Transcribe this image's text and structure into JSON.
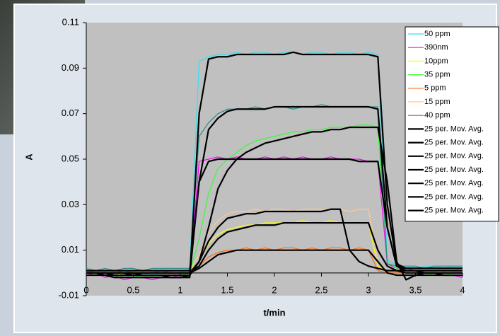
{
  "chart_data": {
    "type": "line",
    "x_label": "t/min",
    "y_label": "A",
    "xlim": [
      0,
      4
    ],
    "xticks": [
      0,
      0.5,
      1,
      1.5,
      2,
      2.5,
      3,
      3.5,
      4
    ],
    "ylim": [
      -0.01,
      0.11
    ],
    "yticks": [
      -0.01,
      0.01,
      0.03,
      0.05,
      0.07,
      0.09,
      0.11
    ],
    "grid": false,
    "legend": "upper right",
    "x": [
      0,
      0.1,
      0.2,
      0.3,
      0.4,
      0.5,
      0.6,
      0.7,
      0.8,
      0.9,
      1,
      1.1,
      1.2,
      1.3,
      1.4,
      1.5,
      1.6,
      1.7,
      1.8,
      1.9,
      2,
      2.1,
      2.2,
      2.3,
      2.4,
      2.5,
      2.6,
      2.7,
      2.8,
      2.9,
      3,
      3.1,
      3.2,
      3.3,
      3.4,
      3.5,
      3.6,
      3.7,
      3.8,
      3.9,
      4
    ],
    "series": [
      {
        "name": "50 ppm",
        "color": "#33e0f0",
        "values": [
          0.001,
          0,
          0.001,
          -0.001,
          0,
          0.001,
          0,
          -0.001,
          0,
          0.001,
          0,
          0.002,
          0.093,
          0.095,
          0.096,
          0.096,
          0.097,
          0.096,
          0.097,
          0.097,
          0.096,
          0.097,
          0.097,
          0.096,
          0.097,
          0.097,
          0.096,
          0.097,
          0.097,
          0.096,
          0.097,
          0.096,
          0.006,
          0.003,
          0.003,
          0.002,
          0.003,
          0.003,
          0.002,
          0.003,
          0.003
        ]
      },
      {
        "name": "390nm",
        "color": "#ff00ff",
        "values": [
          -0.001,
          0,
          -0.002,
          -0.001,
          -0.003,
          -0.002,
          -0.002,
          -0.003,
          -0.002,
          -0.002,
          -0.001,
          0,
          0.049,
          0.05,
          0.051,
          0.05,
          0.051,
          0.05,
          0.05,
          0.051,
          0.05,
          0.051,
          0.05,
          0.051,
          0.05,
          0.05,
          0.051,
          0.05,
          0.05,
          0.05,
          0.049,
          0.049,
          0.004,
          0.002,
          0.002,
          0.001,
          0.001,
          0,
          -0.001,
          -0.001,
          -0.002
        ]
      },
      {
        "name": "10ppm",
        "color": "#ffff00",
        "values": [
          0,
          0.001,
          0,
          0,
          -0.001,
          0,
          0.001,
          0,
          0,
          0,
          0.001,
          0.001,
          0.005,
          0.013,
          0.017,
          0.019,
          0.02,
          0.021,
          0.021,
          0.022,
          0.022,
          0.022,
          0.022,
          0.023,
          0.022,
          0.022,
          0.023,
          0.022,
          0.022,
          0.022,
          0.022,
          0.003,
          0.001,
          0.001,
          0,
          0,
          0.001,
          0,
          0,
          0,
          0
        ]
      },
      {
        "name": "35 ppm",
        "color": "#33ff33",
        "values": [
          0.001,
          -0.001,
          0,
          -0.002,
          -0.001,
          -0.002,
          -0.001,
          -0.002,
          -0.001,
          -0.001,
          -0.001,
          0,
          0.015,
          0.035,
          0.046,
          0.05,
          0.053,
          0.056,
          0.058,
          0.059,
          0.06,
          0.061,
          0.062,
          0.062,
          0.063,
          0.063,
          0.064,
          0.064,
          0.064,
          0.065,
          0.065,
          0.064,
          0.005,
          0.002,
          0.001,
          0,
          0,
          -0.001,
          -0.001,
          0,
          0
        ]
      },
      {
        "name": "5 ppm",
        "color": "#ff6a10",
        "values": [
          0,
          0.001,
          0,
          0,
          0.001,
          0,
          0,
          0,
          0.001,
          0,
          0,
          0.001,
          0.003,
          0.007,
          0.009,
          0.01,
          0.01,
          0.011,
          0.01,
          0.011,
          0.01,
          0.011,
          0.011,
          0.01,
          0.011,
          0.01,
          0.011,
          0.011,
          0.01,
          0.011,
          0.01,
          0.001,
          0,
          0,
          0,
          0,
          0.001,
          0,
          0,
          0,
          0
        ]
      },
      {
        "name": "15 ppm",
        "color": "#ffc890",
        "values": [
          0,
          0,
          0.001,
          0,
          0,
          0,
          0.001,
          0,
          0,
          0,
          0,
          0.001,
          0.008,
          0.018,
          0.023,
          0.026,
          0.027,
          0.027,
          0.028,
          0.027,
          0.028,
          0.028,
          0.027,
          0.028,
          0.028,
          0.028,
          0.028,
          0.028,
          0.027,
          0.028,
          0.028,
          0.005,
          0.001,
          0.001,
          0.001,
          0,
          0.001,
          0,
          0.001,
          0,
          0
        ]
      },
      {
        "name": "40 ppm",
        "color": "#2e8b8b",
        "values": [
          0.002,
          0.001,
          0.002,
          0.001,
          0.002,
          0.002,
          0.001,
          0.002,
          0.002,
          0.002,
          0.002,
          0.002,
          0.06,
          0.066,
          0.07,
          0.072,
          0.072,
          0.072,
          0.073,
          0.072,
          0.073,
          0.073,
          0.072,
          0.073,
          0.073,
          0.074,
          0.073,
          0.073,
          0.073,
          0.073,
          0.073,
          0.073,
          0.004,
          0.003,
          0.003,
          0.003,
          0.002,
          0.003,
          0.003,
          0.003,
          0.003
        ]
      },
      {
        "name": "25 per. Mov. Avg.",
        "color": "#000000",
        "values": [
          0,
          0,
          0,
          -0.001,
          -0.001,
          0,
          -0.001,
          -0.001,
          -0.001,
          -0.002,
          -0.002,
          -0.002,
          0.07,
          0.094,
          0.095,
          0.095,
          0.096,
          0.096,
          0.096,
          0.096,
          0.096,
          0.096,
          0.097,
          0.096,
          0.096,
          0.096,
          0.096,
          0.096,
          0.096,
          0.096,
          0.096,
          0.095,
          0.03,
          0.004,
          0.002,
          0.002,
          0.002,
          0.002,
          0.002,
          0.002,
          0.002
        ]
      },
      {
        "name": "25 per. Mov. Avg.",
        "color": "#000000",
        "values": [
          -0.001,
          -0.001,
          -0.001,
          -0.002,
          -0.002,
          -0.002,
          -0.002,
          -0.002,
          -0.002,
          -0.002,
          -0.002,
          -0.001,
          0.04,
          0.049,
          0.05,
          0.05,
          0.05,
          0.05,
          0.05,
          0.05,
          0.05,
          0.05,
          0.05,
          0.05,
          0.05,
          0.05,
          0.05,
          0.05,
          0.05,
          0.049,
          0.049,
          0.049,
          0.02,
          0.003,
          0.001,
          0.001,
          0,
          0,
          -0.001,
          -0.001,
          -0.001
        ]
      },
      {
        "name": "25 per. Mov. Avg.",
        "color": "#000000",
        "values": [
          0,
          0,
          0,
          0,
          0,
          0,
          0,
          0,
          0,
          0,
          0,
          0,
          0.003,
          0.01,
          0.015,
          0.018,
          0.019,
          0.02,
          0.021,
          0.021,
          0.021,
          0.022,
          0.022,
          0.022,
          0.022,
          0.022,
          0.022,
          0.022,
          0.022,
          0.022,
          0.022,
          0.01,
          0.003,
          0.001,
          0,
          0,
          0,
          0,
          0,
          0,
          0
        ]
      },
      {
        "name": "25 per. Mov. Avg.",
        "color": "#000000",
        "values": [
          0,
          0,
          -0.001,
          -0.001,
          -0.001,
          -0.001,
          -0.001,
          -0.001,
          -0.001,
          -0.001,
          -0.001,
          -0.001,
          0.005,
          0.02,
          0.037,
          0.045,
          0.05,
          0.053,
          0.055,
          0.057,
          0.058,
          0.059,
          0.06,
          0.061,
          0.062,
          0.062,
          0.063,
          0.063,
          0.064,
          0.064,
          0.064,
          0.064,
          0.04,
          0.005,
          -0.003,
          -0.001,
          0,
          0,
          0,
          0,
          0
        ]
      },
      {
        "name": "25 per. Mov. Avg.",
        "color": "#000000",
        "values": [
          0,
          0,
          0,
          0,
          0,
          0,
          0,
          0,
          0,
          0,
          0,
          0,
          0.002,
          0.005,
          0.008,
          0.009,
          0.01,
          0.01,
          0.01,
          0.01,
          0.01,
          0.01,
          0.01,
          0.01,
          0.01,
          0.01,
          0.01,
          0.01,
          0.01,
          0.01,
          0.01,
          0.005,
          0,
          -0.001,
          -0.001,
          -0.001,
          -0.001,
          -0.001,
          -0.001,
          -0.001,
          -0.001
        ]
      },
      {
        "name": "25 per. Mov. Avg.",
        "color": "#000000",
        "values": [
          0,
          0,
          0,
          0,
          0,
          0,
          0,
          0,
          0,
          0,
          0,
          0,
          0.005,
          0.014,
          0.02,
          0.024,
          0.025,
          0.026,
          0.026,
          0.027,
          0.027,
          0.027,
          0.027,
          0.027,
          0.027,
          0.027,
          0.028,
          0.028,
          0.01,
          0.005,
          0.003,
          0.002,
          0.001,
          0.001,
          0.001,
          0.001,
          0.001,
          0.001,
          0.001,
          0.001,
          0.001
        ]
      },
      {
        "name": "25 per. Mov. Avg.",
        "color": "#000000",
        "values": [
          0.001,
          0.001,
          0.001,
          0.001,
          0.001,
          0.001,
          0.001,
          0.001,
          0.001,
          0.001,
          0.001,
          0.001,
          0.04,
          0.063,
          0.068,
          0.071,
          0.072,
          0.072,
          0.072,
          0.072,
          0.073,
          0.073,
          0.073,
          0.073,
          0.073,
          0.073,
          0.073,
          0.073,
          0.073,
          0.073,
          0.073,
          0.072,
          0.02,
          0.003,
          0.002,
          0.002,
          0.002,
          0.002,
          0.002,
          0.002,
          0.002
        ]
      }
    ]
  }
}
